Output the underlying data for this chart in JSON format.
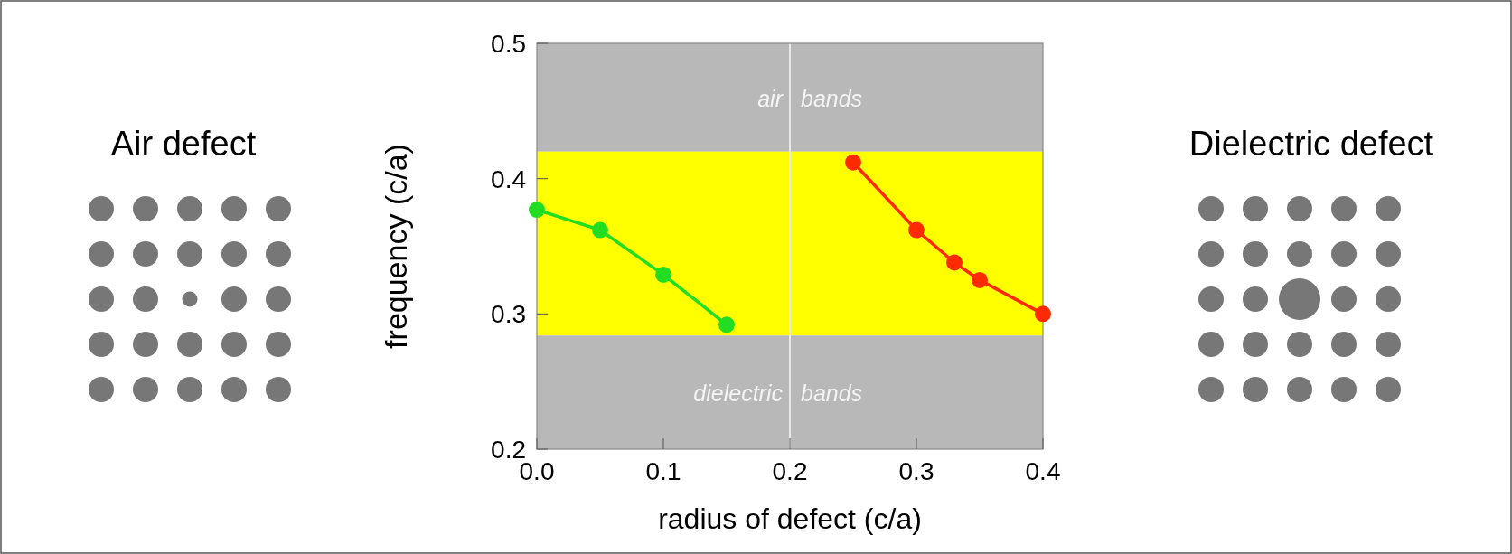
{
  "chart_data": {
    "type": "line",
    "xlabel": "radius of defect (c/a)",
    "ylabel": "frequency (c/a)",
    "xlim": [
      0,
      0.4
    ],
    "xticks": [
      {
        "value": 0,
        "label": "0.0"
      },
      0.1,
      0.2,
      0.3,
      0.4
    ],
    "ylim": [
      0.2,
      0.5
    ],
    "yticks": [
      0.2,
      0.3,
      0.4,
      0.5
    ],
    "series": [
      {
        "color": "#22dd22",
        "x": [
          0,
          0.05,
          0.1,
          0.15
        ],
        "values": [
          0.377,
          0.362,
          0.329,
          0.292
        ]
      },
      {
        "color": "#ff2a00",
        "x": [
          0.25,
          0.3,
          0.33,
          0.35,
          0.4
        ],
        "values": [
          0.412,
          0.362,
          0.338,
          0.325,
          0.3
        ]
      }
    ],
    "bands": [
      {
        "axis": "y",
        "from": 0.42,
        "to": 0.5,
        "label": "air bands",
        "color": "#b8b8b8"
      },
      {
        "axis": "y",
        "from": 0.284,
        "to": 0.42,
        "color": "#ffff00"
      },
      {
        "axis": "y",
        "from": 0.2,
        "to": 0.284,
        "label": "dielectric bands",
        "color": "#b8b8b8"
      }
    ],
    "ref_lines": [
      {
        "axis": "x",
        "value": 0.2,
        "color": "#e8e8e8"
      }
    ],
    "annotations": [
      "Air defect",
      "Dielectric defect"
    ],
    "marker": "circle",
    "line_style": "solid"
  }
}
